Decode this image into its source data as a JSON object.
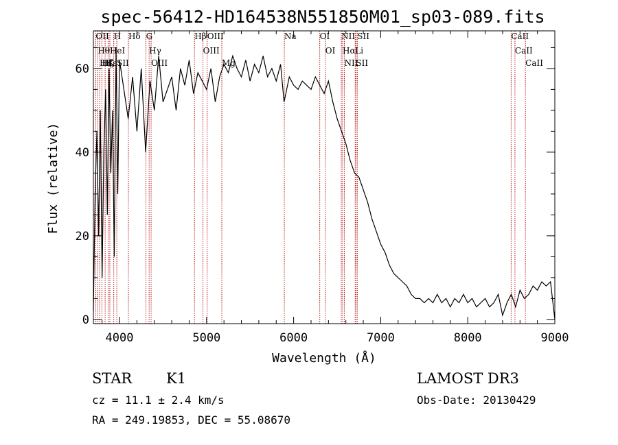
{
  "chart_data": {
    "type": "line",
    "title": "spec-56412-HD164538N551850M01_sp03-089.fits",
    "xlabel": "Wavelength (Å)",
    "ylabel": "Flux (relative)",
    "xlim": [
      3700,
      9000
    ],
    "ylim": [
      -1,
      69
    ],
    "x_ticks": [
      4000,
      5000,
      6000,
      7000,
      8000,
      9000
    ],
    "y_ticks": [
      0,
      20,
      40,
      60
    ],
    "grid": false,
    "series": [
      {
        "x": [
          3700,
          3720,
          3740,
          3760,
          3780,
          3800,
          3820,
          3840,
          3860,
          3880,
          3900,
          3920,
          3940,
          3960,
          3980,
          4000,
          4050,
          4100,
          4150,
          4200,
          4250,
          4300,
          4350,
          4400,
          4450,
          4500,
          4550,
          4600,
          4650,
          4700,
          4750,
          4800,
          4850,
          4900,
          4950,
          5000,
          5050,
          5100,
          5150,
          5200,
          5250,
          5300,
          5350,
          5400,
          5450,
          5500,
          5550,
          5600,
          5650,
          5700,
          5750,
          5800,
          5850,
          5890,
          5950,
          6000,
          6050,
          6100,
          6150,
          6200,
          6250,
          6300,
          6350,
          6400,
          6450,
          6500,
          6550,
          6600,
          6650,
          6700,
          6750,
          6800,
          6850,
          6900,
          6950,
          7000,
          7050,
          7100,
          7150,
          7200,
          7250,
          7300,
          7350,
          7400,
          7450,
          7500,
          7550,
          7600,
          7650,
          7700,
          7750,
          7800,
          7850,
          7900,
          7950,
          8000,
          8050,
          8100,
          8150,
          8200,
          8250,
          8300,
          8350,
          8400,
          8450,
          8500,
          8550,
          8600,
          8650,
          8700,
          8750,
          8800,
          8850,
          8900,
          8950,
          9000
        ],
        "values": [
          2,
          30,
          45,
          20,
          50,
          10,
          40,
          55,
          25,
          60,
          35,
          50,
          15,
          65,
          30,
          62,
          55,
          48,
          58,
          45,
          60,
          40,
          57,
          50,
          63,
          52,
          55,
          58,
          50,
          60,
          56,
          62,
          54,
          59,
          57,
          55,
          60,
          52,
          58,
          61,
          59,
          63,
          60,
          58,
          62,
          57,
          61,
          59,
          63,
          58,
          60,
          57,
          61,
          52,
          58,
          56,
          55,
          57,
          56,
          55,
          58,
          56,
          54,
          57,
          52,
          48,
          45,
          42,
          38,
          35,
          34,
          31,
          28,
          24,
          21,
          18,
          16,
          13,
          11,
          10,
          9,
          8,
          6,
          5,
          5,
          4,
          5,
          4,
          6,
          4,
          5,
          3,
          5,
          4,
          6,
          4,
          5,
          3,
          4,
          5,
          3,
          4,
          6,
          1,
          4,
          6,
          3,
          7,
          5,
          6,
          8,
          7,
          9,
          8,
          9,
          0
        ]
      }
    ],
    "line_markers": [
      {
        "x": 3727,
        "labels": [
          "OII"
        ]
      },
      {
        "x": 3750,
        "labels": [
          "Hθ"
        ]
      },
      {
        "x": 3771,
        "labels": [
          "Hη"
        ]
      },
      {
        "x": 3798,
        "labels": [
          "Hζ"
        ]
      },
      {
        "x": 3835,
        "labels": [
          "Hε"
        ]
      },
      {
        "x": 3869,
        "labels": [
          "K"
        ]
      },
      {
        "x": 3889,
        "labels": [
          "HeI"
        ]
      },
      {
        "x": 3934,
        "labels": [
          "H"
        ]
      },
      {
        "x": 3969,
        "labels": [
          "SII"
        ]
      },
      {
        "x": 4102,
        "labels": [
          "Hδ"
        ]
      },
      {
        "x": 4304,
        "labels": [
          "G"
        ]
      },
      {
        "x": 4340,
        "labels": [
          "Hγ"
        ]
      },
      {
        "x": 4363,
        "labels": [
          "OIII"
        ]
      },
      {
        "x": 4861,
        "labels": [
          "Hβ"
        ]
      },
      {
        "x": 4959,
        "labels": [
          "OIII"
        ]
      },
      {
        "x": 5007,
        "labels": [
          "OIII"
        ]
      },
      {
        "x": 5175,
        "labels": [
          "Mg"
        ]
      },
      {
        "x": 5893,
        "labels": [
          "Na"
        ]
      },
      {
        "x": 6300,
        "labels": [
          "OI"
        ]
      },
      {
        "x": 6364,
        "labels": [
          "OI"
        ]
      },
      {
        "x": 6548,
        "labels": [
          "NII"
        ]
      },
      {
        "x": 6563,
        "labels": [
          "Hα"
        ]
      },
      {
        "x": 6583,
        "labels": [
          "NII"
        ]
      },
      {
        "x": 6707,
        "labels": [
          "Li"
        ]
      },
      {
        "x": 6716,
        "labels": [
          "SII"
        ]
      },
      {
        "x": 6731,
        "labels": [
          "SII"
        ]
      },
      {
        "x": 8498,
        "labels": [
          "CaII"
        ]
      },
      {
        "x": 8542,
        "labels": [
          "CaII"
        ]
      },
      {
        "x": 8662,
        "labels": [
          "CaII"
        ]
      }
    ]
  },
  "info": {
    "object_class": "STAR",
    "subclass": "K1",
    "survey": "LAMOST DR3",
    "cz": "cz = 11.1 ± 2.4 km/s",
    "obs_date": "Obs-Date: 20130429",
    "radec": "RA = 249.19853, DEC =  55.08670"
  }
}
